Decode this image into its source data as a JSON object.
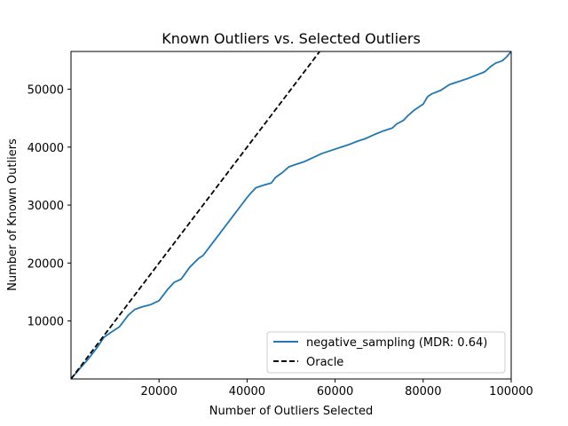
{
  "chart_data": {
    "type": "line",
    "title": "Known Outliers vs. Selected Outliers",
    "xlabel": "Number of Outliers Selected",
    "ylabel": "Number of Known Outliers",
    "xlim": [
      0,
      100000
    ],
    "ylim": [
      0,
      56500
    ],
    "xticks": [
      20000,
      40000,
      60000,
      80000,
      100000
    ],
    "yticks": [
      10000,
      20000,
      30000,
      40000,
      50000
    ],
    "grid": false,
    "legend_position": "lower-right",
    "series": [
      {
        "name": "negative_sampling (MDR: 0.64)",
        "color": "#1f77b4",
        "style": "solid",
        "x": [
          0,
          2000,
          4000,
          6000,
          7500,
          9000,
          11000,
          13000,
          14500,
          16000,
          18000,
          20000,
          22000,
          23500,
          25000,
          27000,
          29000,
          30000,
          32000,
          34000,
          36000,
          38000,
          40000,
          41000,
          42000,
          44000,
          45500,
          46500,
          48000,
          49500,
          51000,
          53000,
          55000,
          57000,
          59000,
          61000,
          63000,
          65000,
          67000,
          69000,
          71000,
          73000,
          74000,
          75500,
          76500,
          78000,
          80000,
          81000,
          82000,
          84000,
          86000,
          88000,
          90000,
          92000,
          94000,
          95500,
          96500,
          98000,
          99000,
          100000
        ],
        "y": [
          0,
          1800,
          3500,
          5500,
          7200,
          8000,
          9000,
          11000,
          12000,
          12400,
          12800,
          13500,
          15500,
          16700,
          17200,
          19300,
          20800,
          21300,
          23300,
          25300,
          27300,
          29300,
          31300,
          32200,
          33000,
          33500,
          33800,
          34800,
          35600,
          36600,
          37000,
          37500,
          38200,
          38900,
          39400,
          39900,
          40400,
          41000,
          41500,
          42200,
          42800,
          43300,
          44000,
          44600,
          45400,
          46400,
          47400,
          48700,
          49200,
          49800,
          50800,
          51300,
          51800,
          52400,
          53000,
          54000,
          54500,
          54900,
          55600,
          56500
        ]
      },
      {
        "name": "Oracle",
        "color": "#000000",
        "style": "dashed",
        "x": [
          0,
          56500
        ],
        "y": [
          0,
          56500
        ]
      }
    ]
  }
}
